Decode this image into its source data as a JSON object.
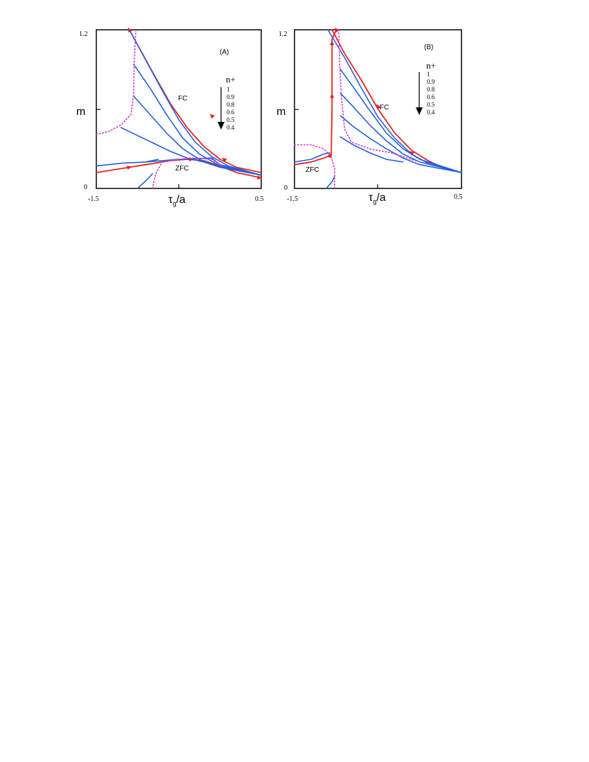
{
  "chart_data": [
    {
      "type": "line",
      "panel_label": "(A)",
      "ylabel": "m",
      "xlabel_main": "τ",
      "xlabel_sub": "g",
      "xlabel_rest": "/a",
      "xlim": [
        -1.5,
        0.5
      ],
      "ylim": [
        0,
        1.2
      ],
      "xticks": [
        "-1.5",
        "0.5"
      ],
      "yticks": [
        "1.2",
        "0"
      ],
      "annotations": [
        "FC",
        "ZFC"
      ],
      "legend": {
        "title": "n+",
        "items": [
          "1",
          "0.9",
          "0.8",
          "0.6",
          "0.5",
          "0.4"
        ]
      },
      "colors": {
        "fc_zfc": "#e8211d",
        "n_curves": "#1f5fe0",
        "boundary": "#d433d4"
      },
      "series": [
        {
          "kind": "fc",
          "points": [
            [
              -1.1,
              1.2
            ],
            [
              -0.95,
              1.03
            ],
            [
              -0.8,
              0.86
            ],
            [
              -0.6,
              0.64
            ],
            [
              -0.4,
              0.46
            ],
            [
              -0.2,
              0.32
            ],
            [
              0.0,
              0.22
            ],
            [
              0.2,
              0.16
            ],
            [
              0.5,
              0.12
            ]
          ],
          "arrows": [
            [
              -0.1,
              0.55
            ],
            [
              -1.1,
              1.2
            ],
            [
              0.05,
              0.22
            ]
          ]
        },
        {
          "kind": "zfc",
          "points": [
            [
              -1.5,
              0.12
            ],
            [
              -1.2,
              0.15
            ],
            [
              -0.9,
              0.18
            ],
            [
              -0.6,
              0.21
            ],
            [
              -0.4,
              0.22
            ],
            [
              -0.2,
              0.21
            ],
            [
              0.0,
              0.17
            ],
            [
              0.2,
              0.12
            ],
            [
              0.5,
              0.08
            ]
          ],
          "arrows": [
            [
              -1.1,
              0.16
            ],
            [
              -0.35,
              0.22
            ],
            [
              0.48,
              0.08
            ]
          ]
        },
        {
          "kind": "n",
          "points": [
            [
              -1.1,
              1.2
            ],
            [
              -0.9,
              0.97
            ],
            [
              -0.7,
              0.74
            ],
            [
              -0.5,
              0.52
            ],
            [
              -0.3,
              0.35
            ],
            [
              -0.1,
              0.24
            ],
            [
              0.1,
              0.17
            ],
            [
              0.5,
              0.1
            ]
          ]
        },
        {
          "kind": "n",
          "points": [
            [
              -1.05,
              0.94
            ],
            [
              -0.85,
              0.76
            ],
            [
              -0.65,
              0.56
            ],
            [
              -0.45,
              0.38
            ],
            [
              -0.25,
              0.26
            ],
            [
              0.0,
              0.17
            ],
            [
              0.5,
              0.1
            ]
          ]
        },
        {
          "kind": "n",
          "points": [
            [
              -1.05,
              0.7
            ],
            [
              -0.85,
              0.56
            ],
            [
              -0.65,
              0.42
            ],
            [
              -0.45,
              0.3
            ],
            [
              -0.25,
              0.22
            ],
            [
              0.0,
              0.16
            ],
            [
              0.5,
              0.1
            ]
          ]
        },
        {
          "kind": "n",
          "points": [
            [
              -1.2,
              0.46
            ],
            [
              -1.0,
              0.4
            ],
            [
              -0.8,
              0.34
            ],
            [
              -0.6,
              0.28
            ],
            [
              -0.4,
              0.23
            ],
            [
              -0.2,
              0.2
            ],
            [
              0.0,
              0.16
            ],
            [
              0.5,
              0.1
            ]
          ]
        },
        {
          "kind": "n",
          "points": [
            [
              -1.5,
              0.17
            ],
            [
              -1.2,
              0.19
            ],
            [
              -0.9,
              0.2
            ],
            [
              -0.7,
              0.21
            ],
            [
              -0.5,
              0.22
            ],
            [
              -0.1,
              0.23
            ],
            [
              0.0,
              0.18
            ],
            [
              0.5,
              0.1
            ]
          ]
        },
        {
          "kind": "n",
          "points": [
            [
              -0.9,
              0.2
            ],
            [
              -0.75,
              0.22
            ]
          ]
        },
        {
          "kind": "n",
          "points": [
            [
              -1.0,
              0.0
            ],
            [
              -0.88,
              0.07
            ],
            [
              -0.82,
              0.11
            ]
          ]
        },
        {
          "kind": "boundary",
          "points": [
            [
              -1.5,
              0.41
            ],
            [
              -1.35,
              0.43
            ],
            [
              -1.2,
              0.48
            ],
            [
              -1.08,
              0.56
            ],
            [
              -1.05,
              0.7
            ],
            [
              -1.04,
              0.95
            ],
            [
              -1.02,
              1.2
            ]
          ]
        },
        {
          "kind": "boundary",
          "points": [
            [
              -0.82,
              0.0
            ],
            [
              -0.78,
              0.11
            ],
            [
              -0.7,
              0.2
            ],
            [
              -0.5,
              0.22
            ],
            [
              -0.3,
              0.23
            ],
            [
              -0.1,
              0.22
            ],
            [
              0.05,
              0.16
            ]
          ]
        }
      ]
    },
    {
      "type": "line",
      "panel_label": "(B)",
      "ylabel": "m",
      "xlabel_main": "τ",
      "xlabel_sub": "g",
      "xlabel_rest": "/a",
      "xlim": [
        -1.5,
        0.5
      ],
      "ylim": [
        0,
        1.2
      ],
      "xticks": [
        "-1.5",
        "0.5"
      ],
      "yticks": [
        "1.2",
        "0"
      ],
      "annotations": [
        "FC",
        "ZFC"
      ],
      "legend": {
        "title": "n+",
        "items": [
          "1",
          "0.9",
          "0.8",
          "0.6",
          "0.5",
          "0.4"
        ]
      },
      "colors": {
        "fc_zfc": "#e8211d",
        "n_curves": "#1f5fe0",
        "boundary": "#d433d4"
      },
      "series": [
        {
          "kind": "fc",
          "points": [
            [
              -1.05,
              1.2
            ],
            [
              -0.9,
              1.02
            ],
            [
              -0.7,
              0.82
            ],
            [
              -0.5,
              0.6
            ],
            [
              -0.3,
              0.42
            ],
            [
              -0.1,
              0.29
            ],
            [
              0.1,
              0.21
            ],
            [
              0.3,
              0.15
            ],
            [
              0.5,
              0.12
            ]
          ],
          "arrows": [
            [
              -0.5,
              0.62
            ],
            [
              -0.1,
              0.27
            ],
            [
              -1.0,
              1.2
            ]
          ]
        },
        {
          "kind": "zfc",
          "points": [
            [
              -1.5,
              0.18
            ],
            [
              -1.3,
              0.2
            ],
            [
              -1.15,
              0.23
            ],
            [
              -1.06,
              0.25
            ],
            [
              -1.05,
              0.6
            ],
            [
              -1.05,
              1.13
            ],
            [
              -1.0,
              1.2
            ]
          ],
          "arrows": [
            [
              -1.05,
              0.7
            ],
            [
              -1.05,
              1.1
            ],
            [
              -1.08,
              0.25
            ]
          ]
        },
        {
          "kind": "n",
          "points": [
            [
              -1.1,
              1.2
            ],
            [
              -0.9,
              0.99
            ],
            [
              -0.7,
              0.76
            ],
            [
              -0.5,
              0.54
            ],
            [
              -0.3,
              0.38
            ],
            [
              -0.1,
              0.26
            ],
            [
              0.1,
              0.19
            ],
            [
              0.5,
              0.12
            ]
          ]
        },
        {
          "kind": "n",
          "points": [
            [
              -0.95,
              0.9
            ],
            [
              -0.8,
              0.77
            ],
            [
              -0.6,
              0.59
            ],
            [
              -0.4,
              0.42
            ],
            [
              -0.2,
              0.3
            ],
            [
              0.0,
              0.22
            ],
            [
              0.5,
              0.12
            ]
          ]
        },
        {
          "kind": "n",
          "points": [
            [
              -0.95,
              0.72
            ],
            [
              -0.8,
              0.62
            ],
            [
              -0.6,
              0.48
            ],
            [
              -0.4,
              0.36
            ],
            [
              -0.2,
              0.26
            ],
            [
              0.0,
              0.2
            ],
            [
              0.5,
              0.12
            ]
          ]
        },
        {
          "kind": "n",
          "points": [
            [
              -0.95,
              0.55
            ],
            [
              -0.8,
              0.47
            ],
            [
              -0.6,
              0.38
            ],
            [
              -0.4,
              0.3
            ],
            [
              -0.2,
              0.23
            ],
            [
              0.0,
              0.18
            ],
            [
              0.5,
              0.12
            ]
          ]
        },
        {
          "kind": "n",
          "points": [
            [
              -0.95,
              0.39
            ],
            [
              -0.8,
              0.33
            ],
            [
              -0.6,
              0.27
            ],
            [
              -0.4,
              0.22
            ],
            [
              -0.2,
              0.2
            ]
          ]
        },
        {
          "kind": "n",
          "points": [
            [
              -1.5,
              0.2
            ],
            [
              -1.3,
              0.22
            ],
            [
              -1.15,
              0.26
            ],
            [
              -1.08,
              0.27
            ]
          ]
        },
        {
          "kind": "n",
          "points": [
            [
              -1.12,
              0.0
            ],
            [
              -1.05,
              0.05
            ],
            [
              -1.02,
              0.09
            ]
          ]
        },
        {
          "kind": "boundary",
          "points": [
            [
              -1.5,
              0.33
            ],
            [
              -1.3,
              0.33
            ],
            [
              -1.15,
              0.3
            ],
            [
              -1.06,
              0.24
            ],
            [
              -1.02,
              0.15
            ],
            [
              -1.02,
              0.0
            ]
          ]
        },
        {
          "kind": "boundary",
          "points": [
            [
              -0.97,
              1.2
            ],
            [
              -0.96,
              0.95
            ],
            [
              -0.94,
              0.7
            ],
            [
              -0.9,
              0.45
            ],
            [
              -0.82,
              0.35
            ],
            [
              -0.6,
              0.3
            ],
            [
              -0.35,
              0.27
            ],
            [
              -0.15,
              0.23
            ],
            [
              0.0,
              0.2
            ]
          ]
        }
      ]
    }
  ]
}
